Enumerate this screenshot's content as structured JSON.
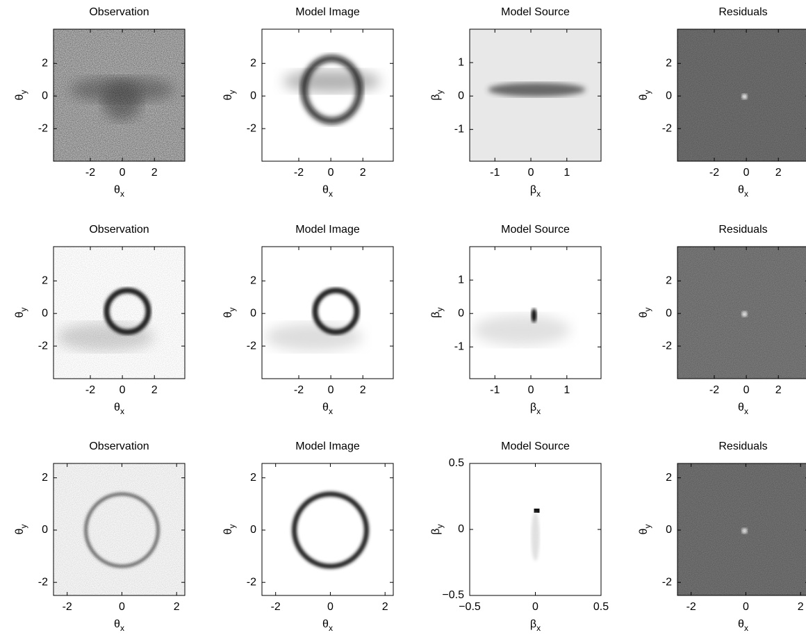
{
  "chart_data": [
    {
      "type": "image",
      "title": "Observation",
      "xlabel": [
        "θ",
        "x"
      ],
      "ylabel": [
        "θ",
        "y"
      ],
      "xlim": [
        -4.3,
        3.9
      ],
      "ylim": [
        -4,
        4.1
      ],
      "xticks": [
        -2,
        0,
        2
      ],
      "yticks": [
        -2,
        0,
        2
      ]
    },
    {
      "type": "image",
      "title": "Model Image",
      "xlabel": [
        "θ",
        "x"
      ],
      "ylabel": [
        "θ",
        "y"
      ],
      "xlim": [
        -4.3,
        3.9
      ],
      "ylim": [
        -4,
        4.1
      ],
      "xticks": [
        -2,
        0,
        2
      ],
      "yticks": [
        -2,
        0,
        2
      ]
    },
    {
      "type": "image",
      "title": "Model Source",
      "xlabel": [
        "β",
        "x"
      ],
      "ylabel": [
        "β",
        "y"
      ],
      "xlim": [
        -1.7,
        1.95
      ],
      "ylim": [
        -1.95,
        2
      ],
      "xticks": [
        -1,
        0,
        1
      ],
      "yticks": [
        -1,
        0,
        1
      ]
    },
    {
      "type": "image",
      "title": "Residuals",
      "xlabel": [
        "θ",
        "x"
      ],
      "ylabel": [
        "θ",
        "y"
      ],
      "xlim": [
        -4.3,
        3.9
      ],
      "ylim": [
        -4,
        4.1
      ],
      "xticks": [
        -2,
        0,
        2
      ],
      "yticks": [
        -2,
        0,
        2
      ]
    },
    {
      "type": "image",
      "title": "Observation",
      "xlabel": [
        "θ",
        "x"
      ],
      "ylabel": [
        "θ",
        "y"
      ],
      "xlim": [
        -4.3,
        3.9
      ],
      "ylim": [
        -4,
        4.1
      ],
      "xticks": [
        -2,
        0,
        2
      ],
      "yticks": [
        -2,
        0,
        2
      ]
    },
    {
      "type": "image",
      "title": "Model Image",
      "xlabel": [
        "θ",
        "x"
      ],
      "ylabel": [
        "θ",
        "y"
      ],
      "xlim": [
        -4.3,
        3.9
      ],
      "ylim": [
        -4,
        4.1
      ],
      "xticks": [
        -2,
        0,
        2
      ],
      "yticks": [
        -2,
        0,
        2
      ]
    },
    {
      "type": "image",
      "title": "Model Source",
      "xlabel": [
        "β",
        "x"
      ],
      "ylabel": [
        "β",
        "y"
      ],
      "xlim": [
        -1.7,
        1.95
      ],
      "ylim": [
        -1.95,
        2
      ],
      "xticks": [
        -1,
        0,
        1
      ],
      "yticks": [
        -1,
        0,
        1
      ]
    },
    {
      "type": "image",
      "title": "Residuals",
      "xlabel": [
        "θ",
        "x"
      ],
      "ylabel": [
        "θ",
        "y"
      ],
      "xlim": [
        -4.3,
        3.9
      ],
      "ylim": [
        -4,
        4.1
      ],
      "xticks": [
        -2,
        0,
        2
      ],
      "yticks": [
        -2,
        0,
        2
      ]
    },
    {
      "type": "image",
      "title": "Observation",
      "xlabel": [
        "θ",
        "x"
      ],
      "ylabel": [
        "θ",
        "y"
      ],
      "xlim": [
        -2.5,
        2.3
      ],
      "ylim": [
        -2.5,
        2.55
      ],
      "xticks": [
        -2,
        0,
        2
      ],
      "yticks": [
        -2,
        0,
        2
      ]
    },
    {
      "type": "image",
      "title": "Model Image",
      "xlabel": [
        "θ",
        "x"
      ],
      "ylabel": [
        "θ",
        "y"
      ],
      "xlim": [
        -2.5,
        2.3
      ],
      "ylim": [
        -2.5,
        2.55
      ],
      "xticks": [
        -2,
        0,
        2
      ],
      "yticks": [
        -2,
        0,
        2
      ]
    },
    {
      "type": "image",
      "title": "Model Source",
      "xlabel": [
        "β",
        "x"
      ],
      "ylabel": [
        "β",
        "y"
      ],
      "xlim": [
        -0.5,
        0.5
      ],
      "ylim": [
        -0.5,
        0.5
      ],
      "xticks": [
        {
          "value": -0.5,
          "label": "−0.5"
        },
        0,
        0.5
      ],
      "yticks": [
        {
          "value": -0.5,
          "label": "−0.5"
        },
        0,
        0.5
      ]
    },
    {
      "type": "image",
      "title": "Residuals",
      "xlabel": [
        "θ",
        "x"
      ],
      "ylabel": [
        "θ",
        "y"
      ],
      "xlim": [
        -2.5,
        2.3
      ],
      "ylim": [
        -2.5,
        2.55
      ],
      "xticks": [
        -2,
        0,
        2
      ],
      "yticks": [
        -2,
        0,
        2
      ]
    }
  ]
}
